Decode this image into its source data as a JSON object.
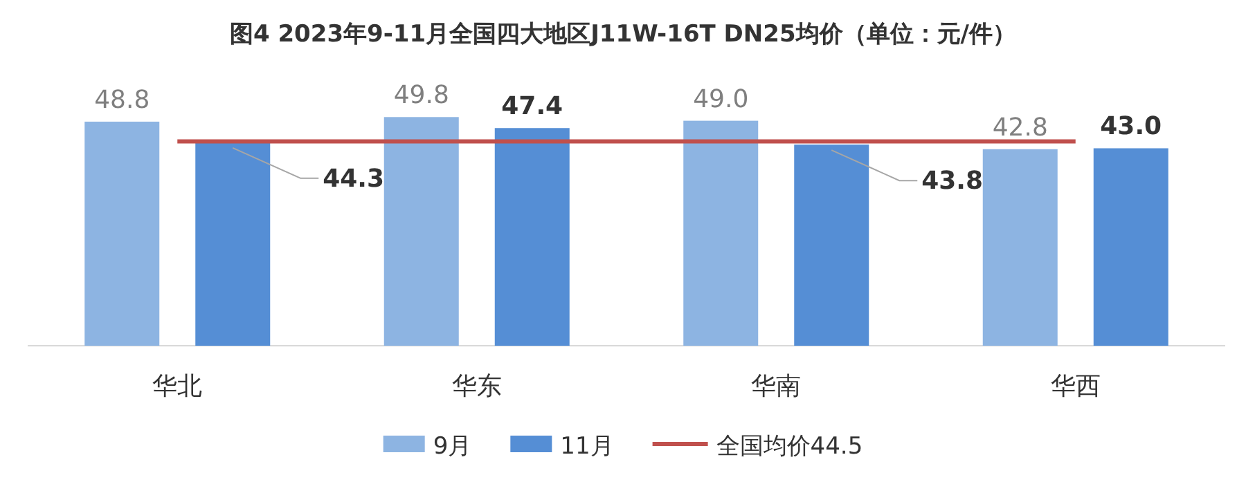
{
  "chart_data": {
    "type": "bar",
    "title": "图4 2023年9-11月全国四大地区J11W-16T DN25均价（单位：元/件）",
    "categories": [
      "华北",
      "华东",
      "华南",
      "华西"
    ],
    "series": [
      {
        "name": "9月",
        "color": "#8db4e2",
        "values": [
          48.8,
          49.8,
          49.0,
          42.8
        ],
        "value_labels": [
          "48.8",
          "49.8",
          "49.0",
          "42.8"
        ]
      },
      {
        "name": "11月",
        "color": "#558ed5",
        "values": [
          44.3,
          47.4,
          43.8,
          43.0
        ],
        "value_labels": [
          "44.3",
          "47.4",
          "43.8",
          "43.0"
        ]
      }
    ],
    "ref_lines": [
      {
        "axis": "y",
        "value": 44.5,
        "label": "全国均价44.5",
        "color": "#c0504d"
      }
    ],
    "legend": "bottom"
  }
}
